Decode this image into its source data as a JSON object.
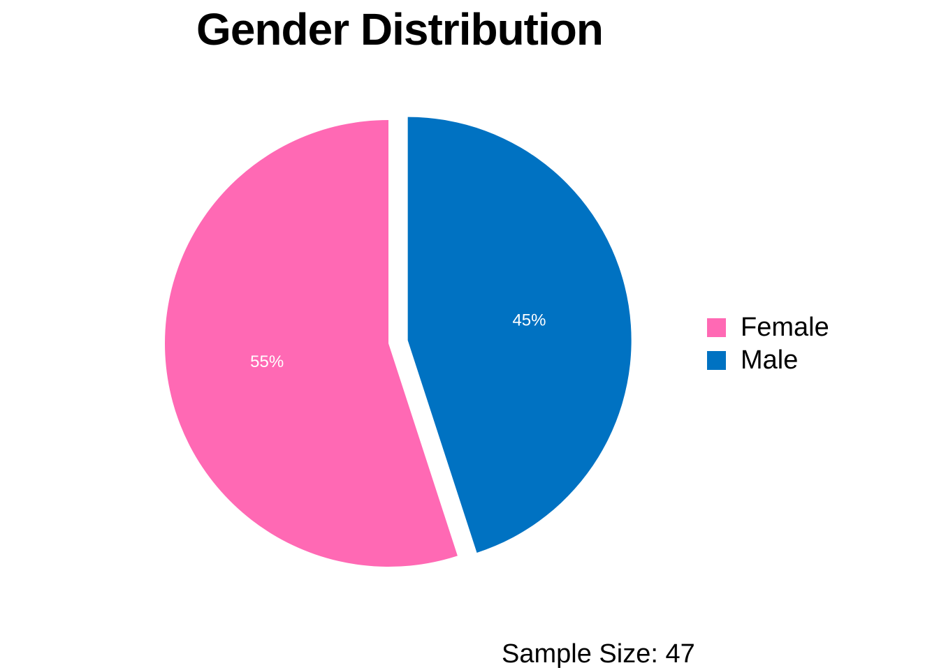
{
  "chart_data": {
    "type": "pie",
    "title": "Gender Distribution",
    "slices": [
      {
        "label": "Female",
        "value": 55,
        "display": "55%",
        "color": "#FF69B4"
      },
      {
        "label": "Male",
        "value": 45,
        "display": "45%",
        "color": "#0072C2"
      }
    ],
    "exploded_slice": "Male",
    "start_angle": "12 o'clock",
    "direction": "clockwise from Male",
    "label_color": "#FFFFFF",
    "legend": {
      "placement": "right",
      "entries": [
        "Female",
        "Male"
      ]
    },
    "annotation": "Sample Size: 47"
  }
}
